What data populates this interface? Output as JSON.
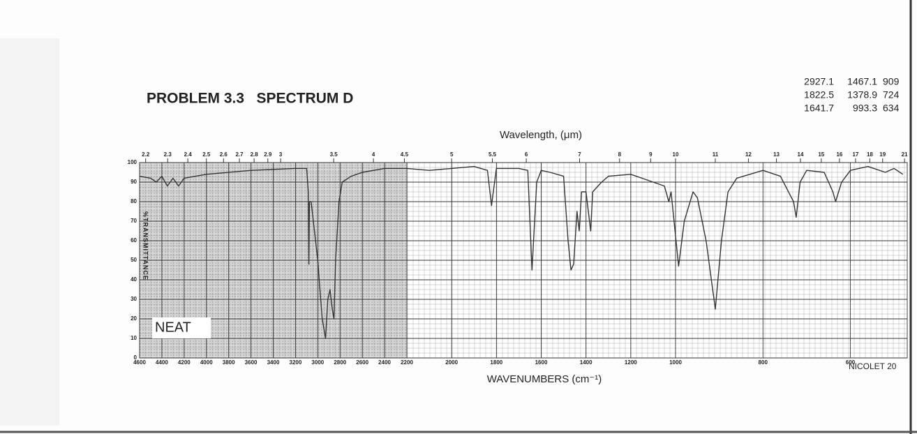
{
  "chart_data": {
    "type": "line",
    "title": "PROBLEM 3.3   SPECTRUM D",
    "peak_table": [
      [
        "2927.1",
        "1467.1",
        "909"
      ],
      [
        "1822.5",
        "1378.9",
        "724"
      ],
      [
        "1641.7",
        "993.3",
        "634"
      ]
    ],
    "x2_label": "Wavelength, (μm)",
    "x_label": "WAVENUMBERS (cm⁻¹)",
    "y_label": "%TRANSMITTANCE",
    "sample_label": "NEAT",
    "instrument_label": "NICOLET 20",
    "xlim": [
      4600,
      470
    ],
    "x_scale_breaks": [
      2200,
      1000
    ],
    "ylim": [
      0,
      100
    ],
    "xticks": [
      4600,
      4400,
      4200,
      4000,
      3800,
      3600,
      3400,
      3200,
      3000,
      2800,
      2600,
      2400,
      2200,
      2000,
      1800,
      1600,
      1400,
      1200,
      1000,
      800,
      600
    ],
    "yticks": [
      0,
      10,
      20,
      30,
      40,
      50,
      60,
      70,
      80,
      90,
      100
    ],
    "x2ticks": [
      2.2,
      2.3,
      2.4,
      2.5,
      2.6,
      2.7,
      2.8,
      2.9,
      3,
      3.5,
      4,
      4.5,
      5,
      5.5,
      6,
      7,
      8,
      9,
      10,
      11,
      12,
      13,
      14,
      15,
      16,
      17,
      18,
      19,
      21
    ],
    "grid": true,
    "color": "#333333",
    "x": [
      4600,
      4500,
      4450,
      4400,
      4350,
      4300,
      4250,
      4200,
      4000,
      3600,
      3200,
      3100,
      3085,
      3080,
      3075,
      3060,
      3040,
      3000,
      2960,
      2930,
      2910,
      2890,
      2870,
      2855,
      2840,
      2810,
      2780,
      2700,
      2600,
      2400,
      2200,
      2100,
      2000,
      1900,
      1840,
      1822,
      1800,
      1700,
      1660,
      1641,
      1620,
      1600,
      1560,
      1500,
      1480,
      1467,
      1455,
      1440,
      1430,
      1420,
      1400,
      1379,
      1370,
      1330,
      1300,
      1200,
      1150,
      1100,
      1050,
      1030,
      1020,
      993,
      980,
      960,
      950,
      930,
      909,
      895,
      880,
      860,
      800,
      760,
      730,
      724,
      715,
      700,
      660,
      640,
      634,
      620,
      600,
      560,
      520,
      500,
      480
    ],
    "values": [
      93,
      92,
      90,
      93,
      88,
      92,
      88,
      92,
      94,
      96,
      97,
      97,
      85,
      48,
      80,
      80,
      70,
      50,
      20,
      10,
      30,
      35,
      25,
      20,
      50,
      80,
      90,
      93,
      95,
      97,
      97,
      96,
      97,
      98,
      96,
      78,
      97,
      97,
      96,
      45,
      90,
      96,
      95,
      93,
      60,
      45,
      48,
      75,
      65,
      85,
      85,
      65,
      85,
      90,
      93,
      94,
      92,
      90,
      88,
      80,
      85,
      47,
      70,
      85,
      82,
      60,
      25,
      60,
      85,
      92,
      96,
      93,
      80,
      72,
      90,
      96,
      95,
      85,
      80,
      90,
      96,
      98,
      95,
      97,
      94
    ]
  }
}
